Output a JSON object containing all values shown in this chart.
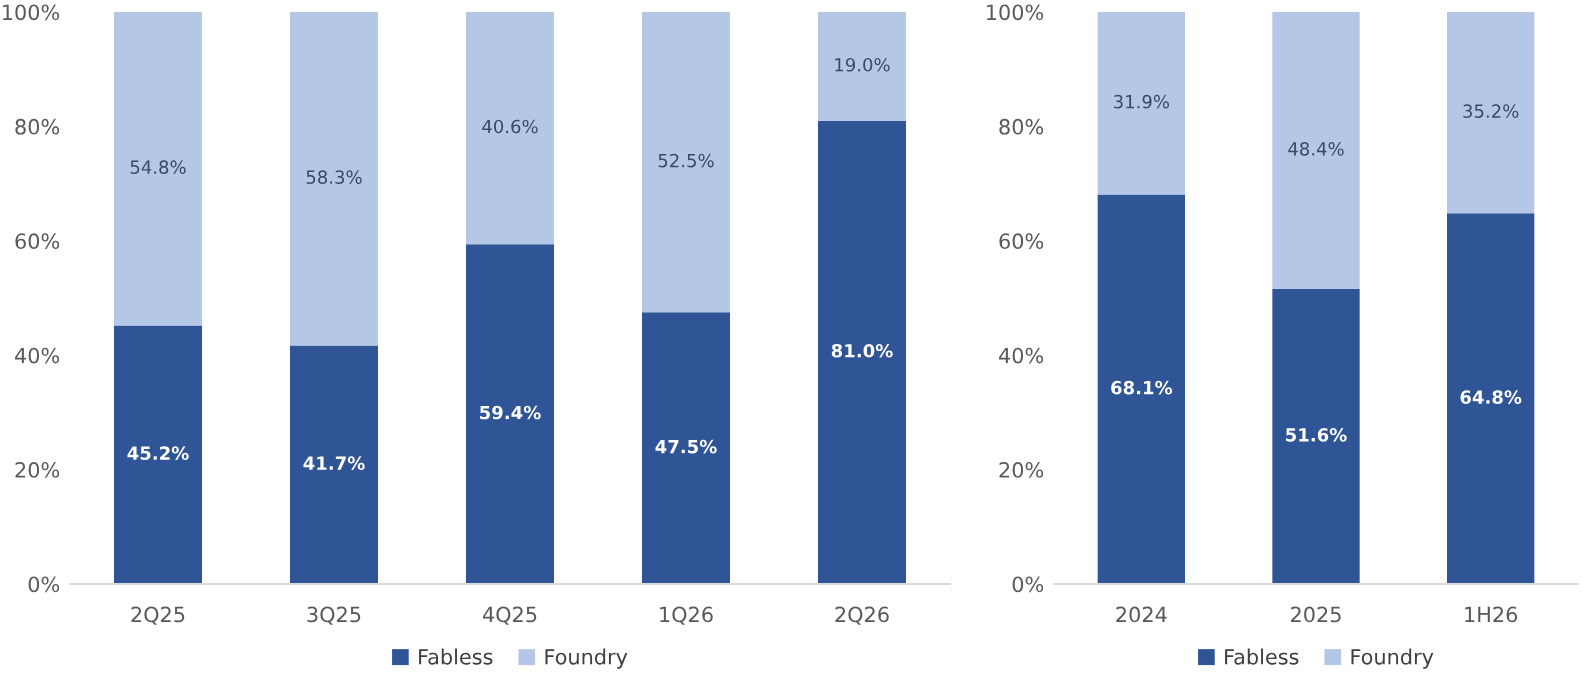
{
  "chart_data": [
    {
      "type": "bar",
      "stacked": true,
      "categories": [
        "2Q25",
        "3Q25",
        "4Q25",
        "1Q26",
        "2Q26"
      ],
      "series": [
        {
          "name": "Fabless",
          "color": "#2f5597",
          "values": [
            45.2,
            41.7,
            59.4,
            47.5,
            81.0
          ],
          "value_labels": [
            "45.2%",
            "41.7%",
            "59.4%",
            "47.5%",
            "81.0%"
          ]
        },
        {
          "name": "Foundry",
          "color": "#b4c7e7",
          "values": [
            54.8,
            58.3,
            40.6,
            52.5,
            19.0
          ],
          "value_labels": [
            "54.8%",
            "58.3%",
            "40.6%",
            "52.5%",
            "19.0%"
          ]
        }
      ],
      "ylim": [
        0,
        100
      ],
      "yticks": [
        {
          "value": 0,
          "label": "0%"
        },
        {
          "value": 20,
          "label": "20%"
        },
        {
          "value": 40,
          "label": "40%"
        },
        {
          "value": 60,
          "label": "60%"
        },
        {
          "value": 80,
          "label": "80%"
        },
        {
          "value": 100,
          "label": "100%"
        }
      ],
      "grid": false,
      "legend": "bottom"
    },
    {
      "type": "bar",
      "stacked": true,
      "categories": [
        "2024",
        "2025",
        "1H26"
      ],
      "series": [
        {
          "name": "Fabless",
          "color": "#2f5597",
          "values": [
            68.1,
            51.6,
            64.8
          ],
          "value_labels": [
            "68.1%",
            "51.6%",
            "64.8%"
          ]
        },
        {
          "name": "Foundry",
          "color": "#b4c7e7",
          "values": [
            31.9,
            48.4,
            35.2
          ],
          "value_labels": [
            "31.9%",
            "48.4%",
            "35.2%"
          ]
        }
      ],
      "ylim": [
        0,
        100
      ],
      "yticks": [
        {
          "value": 0,
          "label": "0%"
        },
        {
          "value": 20,
          "label": "20%"
        },
        {
          "value": 40,
          "label": "40%"
        },
        {
          "value": 60,
          "label": "60%"
        },
        {
          "value": 80,
          "label": "80%"
        },
        {
          "value": 100,
          "label": "100%"
        }
      ],
      "grid": false,
      "legend": "bottom"
    }
  ]
}
